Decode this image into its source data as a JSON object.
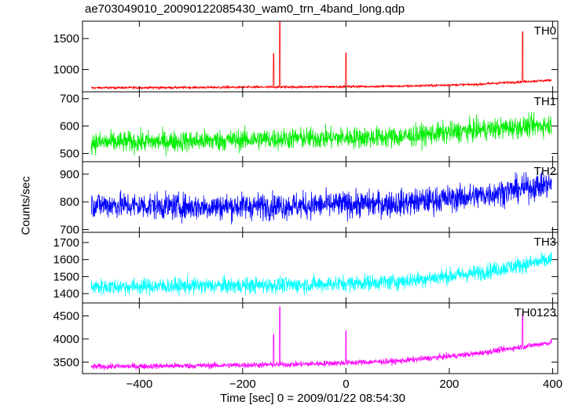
{
  "chart_data": {
    "type": "line",
    "title": "ae703049010_20090122085430_wam0_trn_4band_long.qdp",
    "xlabel": "Time [sec] 0 = 2009/01/22 08:54:30",
    "ylabel": "Counts/sec",
    "xlim": [
      -510,
      410
    ],
    "xticks": [
      -400,
      -200,
      0,
      200,
      400
    ],
    "grid": false,
    "legend": "none",
    "panels": [
      {
        "name": "TH0",
        "color": "#ff0000",
        "ylim": [
          640,
          1780
        ],
        "yticks": [
          1000,
          1500
        ],
        "trend": [
          [
            -490,
            705
          ],
          [
            -300,
            710
          ],
          [
            -100,
            718
          ],
          [
            100,
            730
          ],
          [
            250,
            760
          ],
          [
            400,
            830
          ]
        ],
        "noise": 14,
        "spikes": [
          [
            -140,
            1260
          ],
          [
            -128,
            1780
          ],
          [
            0,
            1270
          ],
          [
            342,
            1610
          ]
        ]
      },
      {
        "name": "TH1",
        "color": "#00ee00",
        "ylim": [
          470,
          725
        ],
        "yticks": [
          500,
          600,
          700
        ],
        "trend": [
          [
            -490,
            540
          ],
          [
            -300,
            545
          ],
          [
            -100,
            555
          ],
          [
            100,
            560
          ],
          [
            250,
            585
          ],
          [
            400,
            605
          ]
        ],
        "noise": 28,
        "spikes": []
      },
      {
        "name": "TH2",
        "color": "#0000ff",
        "ylim": [
          690,
          945
        ],
        "yticks": [
          700,
          800,
          900
        ],
        "trend": [
          [
            -490,
            790
          ],
          [
            -300,
            782
          ],
          [
            -100,
            786
          ],
          [
            100,
            795
          ],
          [
            250,
            820
          ],
          [
            400,
            865
          ]
        ],
        "noise": 34,
        "spikes": []
      },
      {
        "name": "TH3",
        "color": "#00ffff",
        "ylim": [
          1345,
          1760
        ],
        "yticks": [
          1400,
          1500,
          1600,
          1700
        ],
        "trend": [
          [
            -490,
            1440
          ],
          [
            -300,
            1445
          ],
          [
            -100,
            1450
          ],
          [
            100,
            1470
          ],
          [
            250,
            1520
          ],
          [
            400,
            1600
          ]
        ],
        "noise": 34,
        "spikes": []
      },
      {
        "name": "TH0123",
        "color": "#ff00ff",
        "ylim": [
          3250,
          4780
        ],
        "yticks": [
          3500,
          4000,
          4500
        ],
        "trend": [
          [
            -490,
            3400
          ],
          [
            -300,
            3420
          ],
          [
            -100,
            3450
          ],
          [
            100,
            3520
          ],
          [
            250,
            3680
          ],
          [
            400,
            3930
          ]
        ],
        "noise": 45,
        "spikes": [
          [
            -140,
            4100
          ],
          [
            -128,
            4700
          ],
          [
            0,
            4180
          ],
          [
            342,
            4550
          ]
        ]
      }
    ]
  }
}
